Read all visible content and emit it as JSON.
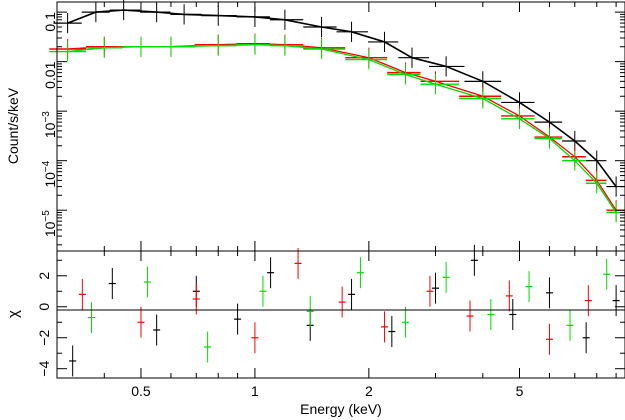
{
  "chart_data": [
    {
      "type": "scatter",
      "xlabel": "",
      "ylabel": "Count/s/keV",
      "xscale": "log",
      "yscale": "log",
      "xlim": [
        0.3,
        9.5
      ],
      "ylim": [
        1.5e-06,
        0.16
      ],
      "ytick_labels": [
        {
          "value": 0.1,
          "base": "0.1",
          "exp": ""
        },
        {
          "value": 0.01,
          "base": "0.01",
          "exp": ""
        },
        {
          "value": 0.001,
          "base": "10",
          "exp": "−3"
        },
        {
          "value": 0.0001,
          "base": "10",
          "exp": "−4"
        },
        {
          "value": 1e-05,
          "base": "10",
          "exp": "−5"
        }
      ],
      "series": [
        {
          "color": "#000000",
          "style": "crosses+model",
          "x": [
            0.32,
            0.38,
            0.45,
            0.55,
            0.65,
            0.8,
            1.0,
            1.2,
            1.5,
            1.8,
            2.2,
            2.6,
            3.2,
            4.0,
            5.0,
            6.0,
            7.0,
            8.0,
            9.0
          ],
          "y": [
            0.06,
            0.1,
            0.11,
            0.1,
            0.09,
            0.085,
            0.08,
            0.07,
            0.05,
            0.04,
            0.025,
            0.012,
            0.008,
            0.004,
            0.0015,
            0.0006,
            0.00025,
            0.0001,
            3e-05
          ]
        },
        {
          "color": "#ff0000",
          "style": "crosses+model",
          "x": [
            0.32,
            0.4,
            0.5,
            0.6,
            0.8,
            1.0,
            1.2,
            1.5,
            2.0,
            2.5,
            3.0,
            4.0,
            5.0,
            6.0,
            7.0,
            8.0,
            9.0
          ],
          "y": [
            0.018,
            0.02,
            0.02,
            0.02,
            0.022,
            0.023,
            0.022,
            0.019,
            0.012,
            0.006,
            0.004,
            0.002,
            0.0008,
            0.0003,
            0.00012,
            4e-05,
            1e-05
          ]
        },
        {
          "color": "#00dd00",
          "style": "crosses+model",
          "x": [
            0.32,
            0.4,
            0.5,
            0.6,
            0.8,
            1.0,
            1.2,
            1.5,
            2.0,
            2.5,
            3.0,
            4.0,
            5.0,
            6.0,
            7.0,
            8.0,
            9.0
          ],
          "y": [
            0.016,
            0.019,
            0.02,
            0.02,
            0.021,
            0.022,
            0.021,
            0.018,
            0.011,
            0.0055,
            0.0035,
            0.0018,
            0.0007,
            0.00028,
            0.0001,
            3.5e-05,
            9e-06
          ]
        }
      ]
    },
    {
      "type": "scatter",
      "xlabel": "Energy (keV)",
      "ylabel": "χ",
      "xscale": "log",
      "xlim": [
        0.3,
        9.5
      ],
      "ylim": [
        -4.6,
        3.6
      ],
      "xtick_labels": [
        {
          "value": 0.5,
          "label": "0.5"
        },
        {
          "value": 1,
          "label": "1"
        },
        {
          "value": 2,
          "label": "2"
        },
        {
          "value": 5,
          "label": "5"
        }
      ],
      "ytick_labels": [
        {
          "value": 2,
          "label": "2"
        },
        {
          "value": 0,
          "label": "0"
        },
        {
          "value": -2,
          "label": "−2"
        },
        {
          "value": -4,
          "label": "−4"
        }
      ],
      "series": [
        {
          "color": "#000000",
          "style": "crosses",
          "x": [
            0.33,
            0.42,
            0.55,
            0.7,
            0.9,
            1.1,
            1.4,
            1.8,
            2.3,
            3.0,
            3.8,
            4.8,
            6.0,
            7.5,
            9.0
          ],
          "y": [
            -3.5,
            1.5,
            -1.5,
            1.0,
            -0.8,
            2.2,
            -1.2,
            0.8,
            -1.6,
            1.2,
            3.0,
            -0.5,
            0.9,
            -2.0,
            0.4
          ]
        },
        {
          "color": "#ff0000",
          "style": "crosses",
          "x": [
            0.35,
            0.5,
            0.7,
            1.0,
            1.3,
            1.7,
            2.2,
            2.9,
            3.7,
            4.7,
            6.0,
            7.6
          ],
          "y": [
            0.8,
            -1.0,
            0.5,
            -2.0,
            2.8,
            0.3,
            -1.3,
            1.0,
            -0.6,
            0.7,
            -2.1,
            0.4
          ]
        },
        {
          "color": "#00dd00",
          "style": "crosses",
          "x": [
            0.37,
            0.52,
            0.75,
            1.05,
            1.4,
            1.9,
            2.5,
            3.2,
            4.2,
            5.3,
            6.8,
            8.5
          ],
          "y": [
            -0.7,
            1.6,
            -2.6,
            1.0,
            -0.3,
            2.2,
            -1.0,
            1.9,
            -0.5,
            1.3,
            -1.2,
            2.1
          ]
        }
      ]
    }
  ]
}
